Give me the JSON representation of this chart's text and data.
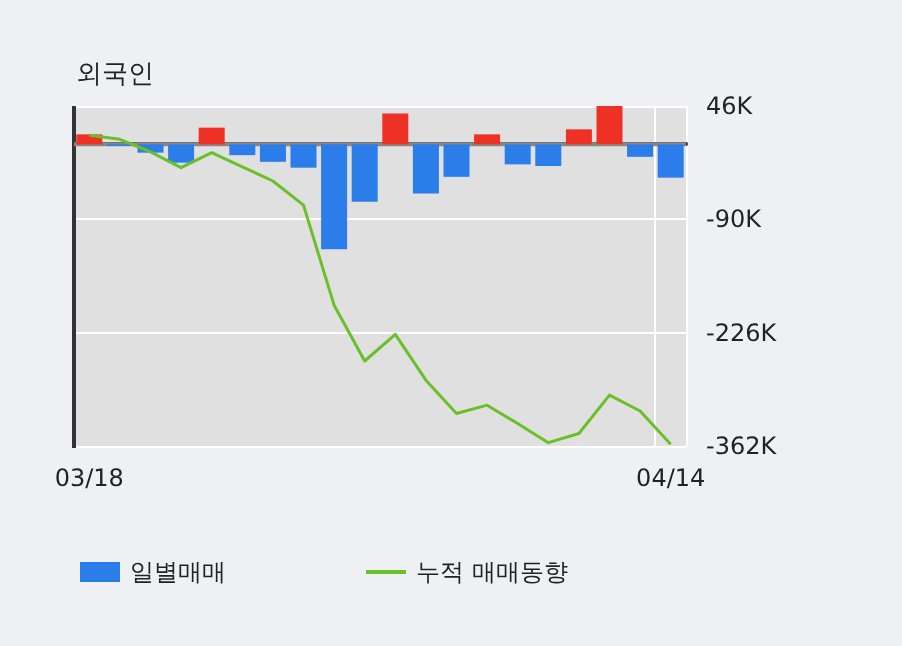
{
  "chart_data": {
    "type": "bar",
    "title": "외국인",
    "categories": [
      "03/18",
      null,
      null,
      null,
      null,
      null,
      null,
      null,
      null,
      null,
      null,
      null,
      null,
      null,
      null,
      null,
      null,
      null,
      null,
      "04/14"
    ],
    "series": [
      {
        "name": "일별매매",
        "color": "#2b7de9",
        "colors": [
          "#ee3124",
          "#2b7de9",
          "#2b7de9",
          "#2b7de9",
          "#ee3124",
          "#2b7de9",
          "#2b7de9",
          "#2b7de9",
          "#2b7de9",
          "#2b7de9",
          "#ee3124",
          "#2b7de9",
          "#2b7de9",
          "#ee3124",
          "#2b7de9",
          "#2b7de9",
          "#ee3124",
          "#ee3124",
          "#2b7de9",
          "#2b7de9"
        ],
        "values": [
          12,
          -2,
          -10,
          -22,
          20,
          -13,
          -21,
          -28,
          -126,
          -69,
          37,
          -59,
          -39,
          12,
          -24,
          -26,
          18,
          46,
          -15,
          -40
        ]
      },
      {
        "name": "누적 매매동향",
        "type": "line",
        "color": "#6abf2a",
        "values": [
          11,
          6,
          -9,
          -28,
          -10,
          -27,
          -44,
          -73,
          -193,
          -260,
          -228,
          -283,
          -323,
          -313,
          -335,
          -358,
          -347,
          -301,
          -320,
          -360
        ]
      }
    ],
    "ylim": [
      -362,
      46
    ],
    "yticks": [
      {
        "value": 46,
        "label": "46K"
      },
      {
        "value": -90,
        "label": "-90K"
      },
      {
        "value": -226,
        "label": "-226K"
      },
      {
        "value": -362,
        "label": "-362K"
      }
    ],
    "grid": true,
    "legend": "bottom",
    "marker": "none"
  }
}
